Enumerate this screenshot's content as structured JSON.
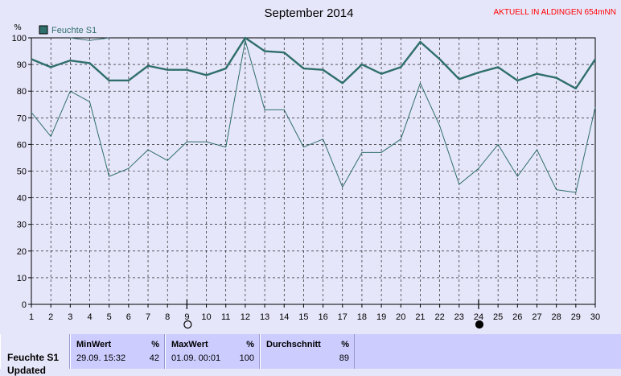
{
  "header": {
    "title": "September 2014",
    "location_note": "AKTUELL IN ALDINGEN 654mNN"
  },
  "chart_data": {
    "type": "line",
    "title": "September 2014",
    "y_unit": "%",
    "ylim": [
      0,
      100
    ],
    "y_ticks": [
      0,
      10,
      20,
      30,
      40,
      50,
      60,
      70,
      80,
      90,
      100
    ],
    "x": [
      1,
      2,
      3,
      4,
      5,
      6,
      7,
      8,
      9,
      10,
      11,
      12,
      13,
      14,
      15,
      16,
      17,
      18,
      19,
      20,
      21,
      22,
      23,
      24,
      25,
      26,
      27,
      28,
      29,
      30
    ],
    "grid": true,
    "legend_position": "top-left",
    "series": [
      {
        "name": "Feuchte S1",
        "style": "daily-mean",
        "color": "#2f6f6b",
        "values": [
          92,
          89,
          91.5,
          90.5,
          84,
          84,
          89.5,
          88,
          88,
          86,
          88.5,
          100,
          95,
          94.5,
          88.5,
          88,
          83,
          90,
          86.5,
          89,
          98.5,
          92,
          84.5,
          87,
          89,
          84,
          86.5,
          85,
          81,
          92
        ]
      },
      {
        "name": "",
        "style": "daily-min",
        "color": "#2f6f6b",
        "values": [
          72,
          63,
          80,
          76,
          48,
          51,
          58,
          54,
          61,
          61,
          59,
          99,
          73,
          73,
          59,
          62,
          44,
          57,
          57,
          62,
          83,
          67,
          45,
          51,
          60,
          48,
          58,
          43,
          42,
          74
        ]
      },
      {
        "name": "",
        "style": "daily-max",
        "color": "#2f6f6b",
        "x": [
          3,
          4,
          5
        ],
        "values": [
          100,
          99,
          100
        ]
      }
    ],
    "moon_markers": [
      {
        "day": 9,
        "phase": "full"
      },
      {
        "day": 24,
        "phase": "new"
      }
    ]
  },
  "colors": {
    "background": "#e6e6fa",
    "line": "#2f6f6b",
    "grid": "#000000",
    "alert_text": "#ff0000",
    "table_bg": "#ccccff"
  },
  "summary_table": {
    "row_label": "Feuchte S1",
    "row_label_cut": "Updated",
    "min": {
      "header": "MinWert",
      "unit": "%",
      "time": "29.09.  15:32",
      "value": "42"
    },
    "max": {
      "header": "MaxWert",
      "unit": "%",
      "time": "01.09.  00:01",
      "value": "100"
    },
    "avg": {
      "header": "Durchschnitt",
      "unit": "%",
      "value": "89"
    }
  }
}
